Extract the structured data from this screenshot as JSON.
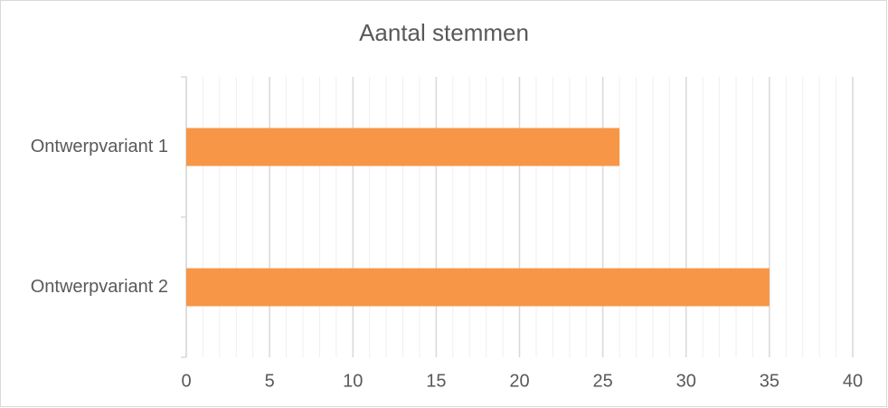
{
  "chart_data": {
    "type": "bar",
    "orientation": "horizontal",
    "title": "Aantal stemmen",
    "categories": [
      "Ontwerpvariant 1",
      "Ontwerpvariant 2"
    ],
    "values": [
      26,
      35
    ],
    "color": "#f79646",
    "xlim": [
      0,
      40
    ],
    "xticks": [
      0,
      5,
      10,
      15,
      20,
      25,
      30,
      35,
      40
    ],
    "grid": true,
    "minor_grid": true
  }
}
